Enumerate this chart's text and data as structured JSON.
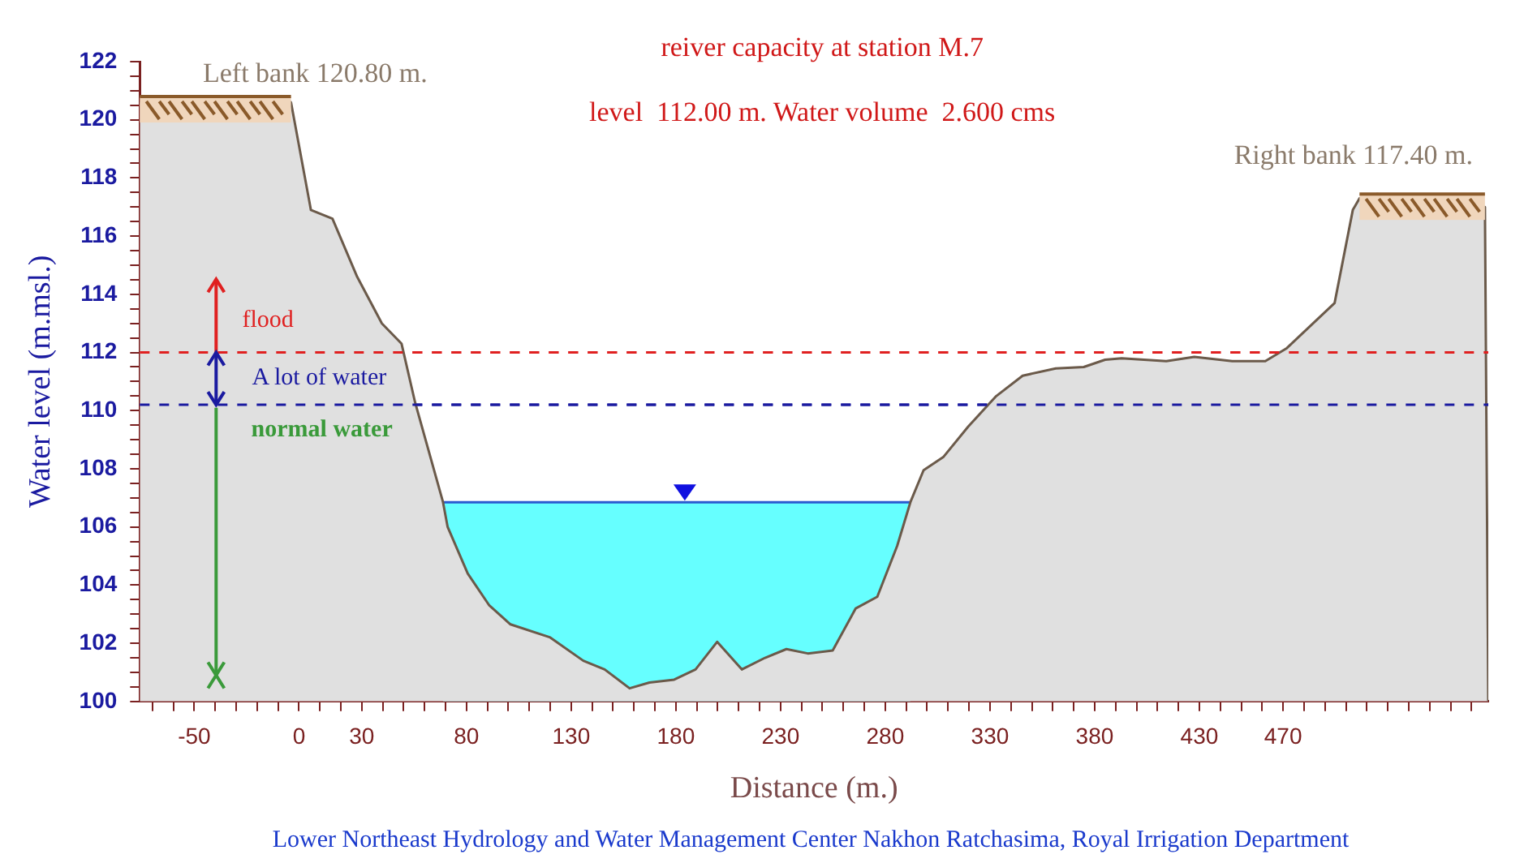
{
  "chart_data": {
    "type": "area",
    "title": "reiver capacity at station M.7",
    "subtitle": "level  112.00 m. Water volume  2.600 cms",
    "xlabel": "Distance (m.)",
    "ylabel": "Water level (m.msl.)",
    "series": [
      {
        "color": "#66ffff",
        "x": [
          68.8,
          292
        ],
        "values": [
          106.85,
          106.85
        ]
      },
      {
        "color": "#e0e0e0",
        "x": [
          -76,
          -7.7,
          -3.8,
          5.7,
          16,
          27.8,
          39.6,
          49,
          55.4,
          68.8,
          71,
          80.6,
          90.9,
          101,
          120,
          135.8,
          146,
          157.9,
          167.4,
          179.2,
          189.4,
          199.7,
          211.5,
          222.6,
          232.8,
          243,
          254.9,
          265.9,
          276.2,
          285.7,
          292,
          298.3,
          307.7,
          319.6,
          333,
          345.6,
          361.4,
          374.8,
          385,
          392.9,
          414.2,
          427.6,
          445.7,
          461.5,
          471.8,
          494.6,
          503.3,
          506.5,
          515,
          566.4,
          568
        ],
        "values": [
          120.6,
          120.8,
          120.6,
          116.9,
          116.6,
          114.6,
          113.0,
          112.3,
          110.3,
          106.85,
          106.0,
          104.4,
          103.3,
          102.65,
          102.2,
          101.4,
          101.1,
          100.45,
          100.65,
          100.75,
          101.1,
          102.05,
          101.1,
          101.5,
          101.8,
          101.65,
          101.75,
          103.2,
          103.6,
          105.35,
          106.85,
          107.95,
          108.4,
          109.45,
          110.5,
          111.2,
          111.45,
          111.5,
          111.75,
          111.8,
          111.7,
          111.85,
          111.7,
          111.7,
          112.15,
          113.7,
          116.9,
          117.3,
          117.45,
          117.0,
          100
        ]
      }
    ],
    "xlim": [
      -76,
      568
    ],
    "xticks": [
      {
        "value": -70,
        "label": null
      },
      {
        "value": -60,
        "label": null
      },
      -50,
      {
        "value": -40,
        "label": null
      },
      {
        "value": -30,
        "label": null
      },
      {
        "value": -20,
        "label": null
      },
      {
        "value": -10,
        "label": null
      },
      0,
      {
        "value": 10,
        "label": null
      },
      {
        "value": 20,
        "label": null
      },
      30,
      {
        "value": 40,
        "label": null
      },
      {
        "value": 50,
        "label": null
      },
      {
        "value": 60,
        "label": null
      },
      {
        "value": 70,
        "label": null
      },
      80,
      {
        "value": 90,
        "label": null
      },
      {
        "value": 100,
        "label": null
      },
      {
        "value": 110,
        "label": null
      },
      {
        "value": 120,
        "label": null
      },
      130,
      {
        "value": 140,
        "label": null
      },
      {
        "value": 150,
        "label": null
      },
      {
        "value": 160,
        "label": null
      },
      {
        "value": 170,
        "label": null
      },
      180,
      {
        "value": 190,
        "label": null
      },
      {
        "value": 200,
        "label": null
      },
      {
        "value": 210,
        "label": null
      },
      {
        "value": 220,
        "label": null
      },
      230,
      {
        "value": 240,
        "label": null
      },
      {
        "value": 250,
        "label": null
      },
      {
        "value": 260,
        "label": null
      },
      {
        "value": 270,
        "label": null
      },
      280,
      {
        "value": 290,
        "label": null
      },
      {
        "value": 300,
        "label": null
      },
      {
        "value": 310,
        "label": null
      },
      {
        "value": 320,
        "label": null
      },
      330,
      {
        "value": 340,
        "label": null
      },
      {
        "value": 350,
        "label": null
      },
      {
        "value": 360,
        "label": null
      },
      {
        "value": 370,
        "label": null
      },
      380,
      {
        "value": 390,
        "label": null
      },
      {
        "value": 400,
        "label": null
      },
      {
        "value": 410,
        "label": null
      },
      {
        "value": 420,
        "label": null
      },
      430,
      {
        "value": 440,
        "label": null
      },
      {
        "value": 450,
        "label": null
      },
      {
        "value": 460,
        "label": null
      },
      470,
      {
        "value": 480,
        "label": null
      },
      {
        "value": 490,
        "label": null
      },
      {
        "value": 500,
        "label": null
      },
      {
        "value": 510,
        "label": null
      },
      {
        "value": 520,
        "label": null
      },
      {
        "value": 530,
        "label": null
      },
      {
        "value": 540,
        "label": null
      },
      {
        "value": 550,
        "label": null
      },
      {
        "value": 560,
        "label": null
      }
    ],
    "ylim": [
      100,
      122
    ],
    "yticks": [
      100,
      {
        "value": 100.5,
        "label": null
      },
      {
        "value": 101,
        "label": null
      },
      {
        "value": 101.5,
        "label": null
      },
      102,
      {
        "value": 102.5,
        "label": null
      },
      {
        "value": 103,
        "label": null
      },
      {
        "value": 103.5,
        "label": null
      },
      104,
      {
        "value": 104.5,
        "label": null
      },
      {
        "value": 105,
        "label": null
      },
      {
        "value": 105.5,
        "label": null
      },
      106,
      {
        "value": 106.5,
        "label": null
      },
      {
        "value": 107,
        "label": null
      },
      {
        "value": 107.5,
        "label": null
      },
      108,
      {
        "value": 108.5,
        "label": null
      },
      {
        "value": 109,
        "label": null
      },
      {
        "value": 109.5,
        "label": null
      },
      110,
      {
        "value": 110.5,
        "label": null
      },
      {
        "value": 111,
        "label": null
      },
      {
        "value": 111.5,
        "label": null
      },
      112,
      {
        "value": 112.5,
        "label": null
      },
      {
        "value": 113,
        "label": null
      },
      {
        "value": 113.5,
        "label": null
      },
      114,
      {
        "value": 114.5,
        "label": null
      },
      {
        "value": 115,
        "label": null
      },
      {
        "value": 115.5,
        "label": null
      },
      116,
      {
        "value": 116.5,
        "label": null
      },
      {
        "value": 117,
        "label": null
      },
      {
        "value": 117.5,
        "label": null
      },
      118,
      {
        "value": 118.5,
        "label": null
      },
      {
        "value": 119,
        "label": null
      },
      {
        "value": 119.5,
        "label": null
      },
      120,
      {
        "value": 120.5,
        "label": null
      },
      {
        "value": 121,
        "label": null
      },
      {
        "value": 121.5,
        "label": null
      },
      122
    ],
    "ref_lines": [
      {
        "axis": "y",
        "value": 112.0,
        "color": "#e02020",
        "line_style": "dashed"
      },
      {
        "axis": "y",
        "value": 110.2,
        "color": "#1a1aa0",
        "line_style": "dashed"
      }
    ],
    "annotations": [
      "Left bank 120.80 m.",
      "Right bank 117.40 m.",
      "flood",
      "A lot of water",
      "normal water",
      "Lower Northeast Hydrology and Water Management Center Nakhon Ratchasima, Royal Irrigation Department"
    ],
    "grid": false,
    "legend": false
  }
}
